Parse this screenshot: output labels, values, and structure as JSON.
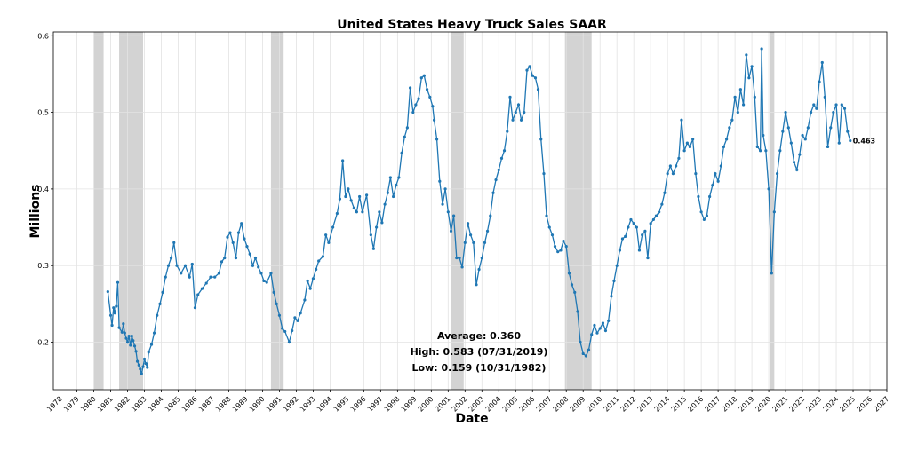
{
  "chart_data": {
    "type": "line",
    "title": "United States Heavy Truck Sales SAAR",
    "xlabel": "Date",
    "ylabel": "Millions",
    "xlim": [
      1977.6,
      2027.0
    ],
    "ylim": [
      0.138,
      0.605
    ],
    "x_ticks": [
      1978,
      1979,
      1980,
      1981,
      1982,
      1983,
      1984,
      1985,
      1986,
      1987,
      1988,
      1989,
      1990,
      1991,
      1992,
      1993,
      1994,
      1995,
      1996,
      1997,
      1998,
      1999,
      2000,
      2001,
      2002,
      2003,
      2004,
      2005,
      2006,
      2007,
      2008,
      2009,
      2010,
      2011,
      2012,
      2013,
      2014,
      2015,
      2016,
      2017,
      2018,
      2019,
      2020,
      2021,
      2022,
      2023,
      2024,
      2025,
      2026,
      2027
    ],
    "y_ticks": [
      {
        "value": 0.2,
        "label": "0.2"
      },
      {
        "value": 0.3,
        "label": "0.3"
      },
      {
        "value": 0.4,
        "label": "0.4"
      },
      {
        "value": 0.5,
        "label": "0.5"
      },
      {
        "value": 0.6,
        "label": "0.6"
      }
    ],
    "grid": true,
    "line_color": "#1f77b4",
    "recession_color": "#d3d3d3",
    "recessions": [
      [
        1980.0,
        1980.58
      ],
      [
        1981.5,
        1982.92
      ],
      [
        1990.5,
        1991.25
      ],
      [
        2001.17,
        2001.92
      ],
      [
        2007.92,
        2009.5
      ],
      [
        2020.08,
        2020.33
      ]
    ],
    "series": [
      {
        "points": [
          [
            1980.83,
            0.266
          ],
          [
            1981.0,
            0.235
          ],
          [
            1981.08,
            0.222
          ],
          [
            1981.17,
            0.245
          ],
          [
            1981.25,
            0.238
          ],
          [
            1981.33,
            0.247
          ],
          [
            1981.42,
            0.278
          ],
          [
            1981.5,
            0.219
          ],
          [
            1981.67,
            0.213
          ],
          [
            1981.75,
            0.224
          ],
          [
            1981.83,
            0.212
          ],
          [
            1981.92,
            0.205
          ],
          [
            1982.0,
            0.2
          ],
          [
            1982.08,
            0.208
          ],
          [
            1982.17,
            0.196
          ],
          [
            1982.25,
            0.208
          ],
          [
            1982.33,
            0.202
          ],
          [
            1982.42,
            0.195
          ],
          [
            1982.5,
            0.188
          ],
          [
            1982.58,
            0.175
          ],
          [
            1982.67,
            0.17
          ],
          [
            1982.75,
            0.165
          ],
          [
            1982.83,
            0.159
          ],
          [
            1982.92,
            0.168
          ],
          [
            1983.0,
            0.178
          ],
          [
            1983.08,
            0.172
          ],
          [
            1983.17,
            0.167
          ],
          [
            1983.25,
            0.187
          ],
          [
            1983.42,
            0.197
          ],
          [
            1983.58,
            0.212
          ],
          [
            1983.75,
            0.235
          ],
          [
            1983.92,
            0.25
          ],
          [
            1984.08,
            0.265
          ],
          [
            1984.25,
            0.285
          ],
          [
            1984.42,
            0.3
          ],
          [
            1984.58,
            0.31
          ],
          [
            1984.75,
            0.33
          ],
          [
            1984.92,
            0.3
          ],
          [
            1985.17,
            0.29
          ],
          [
            1985.42,
            0.3
          ],
          [
            1985.67,
            0.285
          ],
          [
            1985.83,
            0.302
          ],
          [
            1986.0,
            0.245
          ],
          [
            1986.17,
            0.262
          ],
          [
            1986.42,
            0.27
          ],
          [
            1986.67,
            0.277
          ],
          [
            1986.92,
            0.285
          ],
          [
            1987.17,
            0.285
          ],
          [
            1987.42,
            0.29
          ],
          [
            1987.58,
            0.305
          ],
          [
            1987.75,
            0.31
          ],
          [
            1987.92,
            0.337
          ],
          [
            1988.08,
            0.343
          ],
          [
            1988.25,
            0.33
          ],
          [
            1988.42,
            0.31
          ],
          [
            1988.58,
            0.343
          ],
          [
            1988.75,
            0.355
          ],
          [
            1988.92,
            0.335
          ],
          [
            1989.08,
            0.325
          ],
          [
            1989.25,
            0.315
          ],
          [
            1989.42,
            0.3
          ],
          [
            1989.58,
            0.31
          ],
          [
            1989.75,
            0.298
          ],
          [
            1989.92,
            0.29
          ],
          [
            1990.08,
            0.28
          ],
          [
            1990.25,
            0.278
          ],
          [
            1990.5,
            0.29
          ],
          [
            1990.67,
            0.265
          ],
          [
            1990.83,
            0.25
          ],
          [
            1991.0,
            0.235
          ],
          [
            1991.17,
            0.218
          ],
          [
            1991.33,
            0.214
          ],
          [
            1991.58,
            0.2
          ],
          [
            1991.75,
            0.215
          ],
          [
            1991.92,
            0.232
          ],
          [
            1992.08,
            0.228
          ],
          [
            1992.25,
            0.238
          ],
          [
            1992.5,
            0.255
          ],
          [
            1992.67,
            0.28
          ],
          [
            1992.83,
            0.27
          ],
          [
            1993.0,
            0.283
          ],
          [
            1993.17,
            0.295
          ],
          [
            1993.33,
            0.306
          ],
          [
            1993.58,
            0.312
          ],
          [
            1993.75,
            0.34
          ],
          [
            1993.92,
            0.33
          ],
          [
            1994.17,
            0.35
          ],
          [
            1994.42,
            0.368
          ],
          [
            1994.58,
            0.387
          ],
          [
            1994.75,
            0.437
          ],
          [
            1994.92,
            0.39
          ],
          [
            1995.08,
            0.4
          ],
          [
            1995.25,
            0.385
          ],
          [
            1995.42,
            0.375
          ],
          [
            1995.58,
            0.37
          ],
          [
            1995.75,
            0.39
          ],
          [
            1995.92,
            0.37
          ],
          [
            1996.17,
            0.392
          ],
          [
            1996.42,
            0.34
          ],
          [
            1996.58,
            0.322
          ],
          [
            1996.75,
            0.35
          ],
          [
            1996.92,
            0.37
          ],
          [
            1997.08,
            0.356
          ],
          [
            1997.25,
            0.38
          ],
          [
            1997.42,
            0.395
          ],
          [
            1997.58,
            0.415
          ],
          [
            1997.75,
            0.39
          ],
          [
            1997.92,
            0.405
          ],
          [
            1998.08,
            0.415
          ],
          [
            1998.25,
            0.447
          ],
          [
            1998.42,
            0.468
          ],
          [
            1998.58,
            0.48
          ],
          [
            1998.75,
            0.532
          ],
          [
            1998.92,
            0.5
          ],
          [
            1999.08,
            0.51
          ],
          [
            1999.25,
            0.518
          ],
          [
            1999.42,
            0.545
          ],
          [
            1999.58,
            0.548
          ],
          [
            1999.75,
            0.53
          ],
          [
            1999.92,
            0.52
          ],
          [
            2000.08,
            0.508
          ],
          [
            2000.17,
            0.49
          ],
          [
            2000.33,
            0.465
          ],
          [
            2000.5,
            0.41
          ],
          [
            2000.67,
            0.38
          ],
          [
            2000.83,
            0.4
          ],
          [
            2001.0,
            0.37
          ],
          [
            2001.17,
            0.345
          ],
          [
            2001.33,
            0.365
          ],
          [
            2001.5,
            0.31
          ],
          [
            2001.67,
            0.31
          ],
          [
            2001.83,
            0.298
          ],
          [
            2002.0,
            0.33
          ],
          [
            2002.17,
            0.355
          ],
          [
            2002.33,
            0.34
          ],
          [
            2002.5,
            0.33
          ],
          [
            2002.67,
            0.275
          ],
          [
            2002.83,
            0.295
          ],
          [
            2003.0,
            0.31
          ],
          [
            2003.17,
            0.33
          ],
          [
            2003.33,
            0.345
          ],
          [
            2003.5,
            0.365
          ],
          [
            2003.67,
            0.395
          ],
          [
            2003.83,
            0.412
          ],
          [
            2004.0,
            0.425
          ],
          [
            2004.17,
            0.44
          ],
          [
            2004.33,
            0.45
          ],
          [
            2004.5,
            0.475
          ],
          [
            2004.67,
            0.52
          ],
          [
            2004.83,
            0.49
          ],
          [
            2005.0,
            0.5
          ],
          [
            2005.17,
            0.51
          ],
          [
            2005.33,
            0.49
          ],
          [
            2005.5,
            0.5
          ],
          [
            2005.67,
            0.555
          ],
          [
            2005.83,
            0.56
          ],
          [
            2006.0,
            0.548
          ],
          [
            2006.17,
            0.545
          ],
          [
            2006.33,
            0.53
          ],
          [
            2006.5,
            0.465
          ],
          [
            2006.67,
            0.42
          ],
          [
            2006.83,
            0.365
          ],
          [
            2007.0,
            0.35
          ],
          [
            2007.17,
            0.34
          ],
          [
            2007.33,
            0.325
          ],
          [
            2007.5,
            0.318
          ],
          [
            2007.67,
            0.32
          ],
          [
            2007.83,
            0.332
          ],
          [
            2008.0,
            0.325
          ],
          [
            2008.17,
            0.29
          ],
          [
            2008.33,
            0.275
          ],
          [
            2008.5,
            0.265
          ],
          [
            2008.67,
            0.24
          ],
          [
            2008.83,
            0.2
          ],
          [
            2009.0,
            0.185
          ],
          [
            2009.17,
            0.182
          ],
          [
            2009.33,
            0.19
          ],
          [
            2009.5,
            0.21
          ],
          [
            2009.67,
            0.222
          ],
          [
            2009.83,
            0.212
          ],
          [
            2010.0,
            0.218
          ],
          [
            2010.17,
            0.225
          ],
          [
            2010.33,
            0.215
          ],
          [
            2010.5,
            0.228
          ],
          [
            2010.67,
            0.26
          ],
          [
            2010.83,
            0.28
          ],
          [
            2011.0,
            0.3
          ],
          [
            2011.17,
            0.32
          ],
          [
            2011.33,
            0.335
          ],
          [
            2011.5,
            0.338
          ],
          [
            2011.67,
            0.35
          ],
          [
            2011.83,
            0.36
          ],
          [
            2012.0,
            0.355
          ],
          [
            2012.17,
            0.35
          ],
          [
            2012.33,
            0.32
          ],
          [
            2012.5,
            0.34
          ],
          [
            2012.67,
            0.345
          ],
          [
            2012.83,
            0.31
          ],
          [
            2013.0,
            0.355
          ],
          [
            2013.17,
            0.36
          ],
          [
            2013.33,
            0.365
          ],
          [
            2013.5,
            0.37
          ],
          [
            2013.67,
            0.38
          ],
          [
            2013.83,
            0.395
          ],
          [
            2014.0,
            0.42
          ],
          [
            2014.17,
            0.43
          ],
          [
            2014.33,
            0.42
          ],
          [
            2014.5,
            0.43
          ],
          [
            2014.67,
            0.44
          ],
          [
            2014.83,
            0.49
          ],
          [
            2015.0,
            0.45
          ],
          [
            2015.17,
            0.46
          ],
          [
            2015.33,
            0.455
          ],
          [
            2015.5,
            0.465
          ],
          [
            2015.67,
            0.42
          ],
          [
            2015.83,
            0.39
          ],
          [
            2016.0,
            0.37
          ],
          [
            2016.17,
            0.36
          ],
          [
            2016.33,
            0.365
          ],
          [
            2016.5,
            0.39
          ],
          [
            2016.67,
            0.405
          ],
          [
            2016.83,
            0.42
          ],
          [
            2017.0,
            0.41
          ],
          [
            2017.17,
            0.43
          ],
          [
            2017.33,
            0.455
          ],
          [
            2017.5,
            0.465
          ],
          [
            2017.67,
            0.48
          ],
          [
            2017.83,
            0.49
          ],
          [
            2018.0,
            0.52
          ],
          [
            2018.17,
            0.5
          ],
          [
            2018.33,
            0.53
          ],
          [
            2018.5,
            0.51
          ],
          [
            2018.67,
            0.575
          ],
          [
            2018.83,
            0.545
          ],
          [
            2019.0,
            0.56
          ],
          [
            2019.17,
            0.52
          ],
          [
            2019.33,
            0.455
          ],
          [
            2019.5,
            0.45
          ],
          [
            2019.58,
            0.583
          ],
          [
            2019.67,
            0.47
          ],
          [
            2019.83,
            0.45
          ],
          [
            2020.0,
            0.4
          ],
          [
            2020.17,
            0.29
          ],
          [
            2020.33,
            0.37
          ],
          [
            2020.5,
            0.42
          ],
          [
            2020.67,
            0.45
          ],
          [
            2020.83,
            0.475
          ],
          [
            2021.0,
            0.5
          ],
          [
            2021.17,
            0.48
          ],
          [
            2021.33,
            0.46
          ],
          [
            2021.5,
            0.435
          ],
          [
            2021.67,
            0.425
          ],
          [
            2021.83,
            0.445
          ],
          [
            2022.0,
            0.47
          ],
          [
            2022.17,
            0.465
          ],
          [
            2022.33,
            0.48
          ],
          [
            2022.5,
            0.5
          ],
          [
            2022.67,
            0.51
          ],
          [
            2022.83,
            0.505
          ],
          [
            2023.0,
            0.54
          ],
          [
            2023.17,
            0.565
          ],
          [
            2023.33,
            0.52
          ],
          [
            2023.5,
            0.455
          ],
          [
            2023.67,
            0.48
          ],
          [
            2023.83,
            0.5
          ],
          [
            2024.0,
            0.51
          ],
          [
            2024.17,
            0.46
          ],
          [
            2024.33,
            0.51
          ],
          [
            2024.5,
            0.505
          ],
          [
            2024.67,
            0.475
          ],
          [
            2024.83,
            0.463
          ]
        ]
      }
    ],
    "annotations": {
      "last_value_label": "0.463",
      "average": "Average: 0.360",
      "high": "High: 0.583 (07/31/2019)",
      "low": "Low: 0.159 (10/31/1982)"
    }
  }
}
